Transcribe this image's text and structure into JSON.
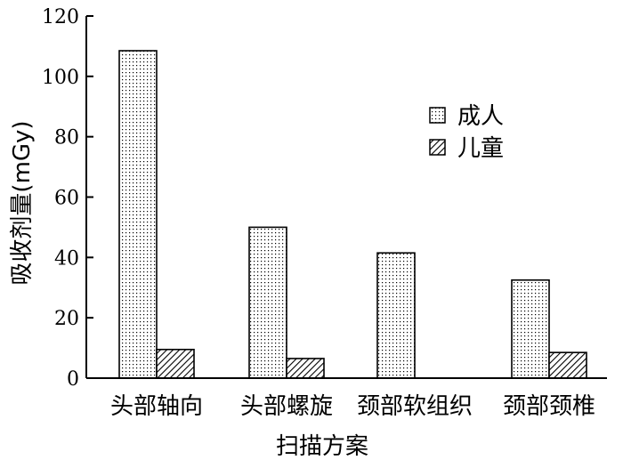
{
  "chart_data": {
    "type": "bar",
    "title": "",
    "xlabel": "扫描方案",
    "ylabel": "吸收剂量(mGy)",
    "ylim": [
      0,
      120
    ],
    "yticks": [
      0,
      20,
      40,
      60,
      80,
      100,
      120
    ],
    "categories": [
      "头部轴向",
      "头部螺旋",
      "颈部软组织",
      "颈部颈椎"
    ],
    "series": [
      {
        "name": "成人",
        "pattern": "dots",
        "values": [
          108.5,
          50,
          41.5,
          32.5
        ]
      },
      {
        "name": "儿童",
        "pattern": "hatch",
        "values": [
          9.5,
          6.5,
          null,
          8.5
        ]
      }
    ],
    "legend_position": "top-right",
    "grid": false
  }
}
